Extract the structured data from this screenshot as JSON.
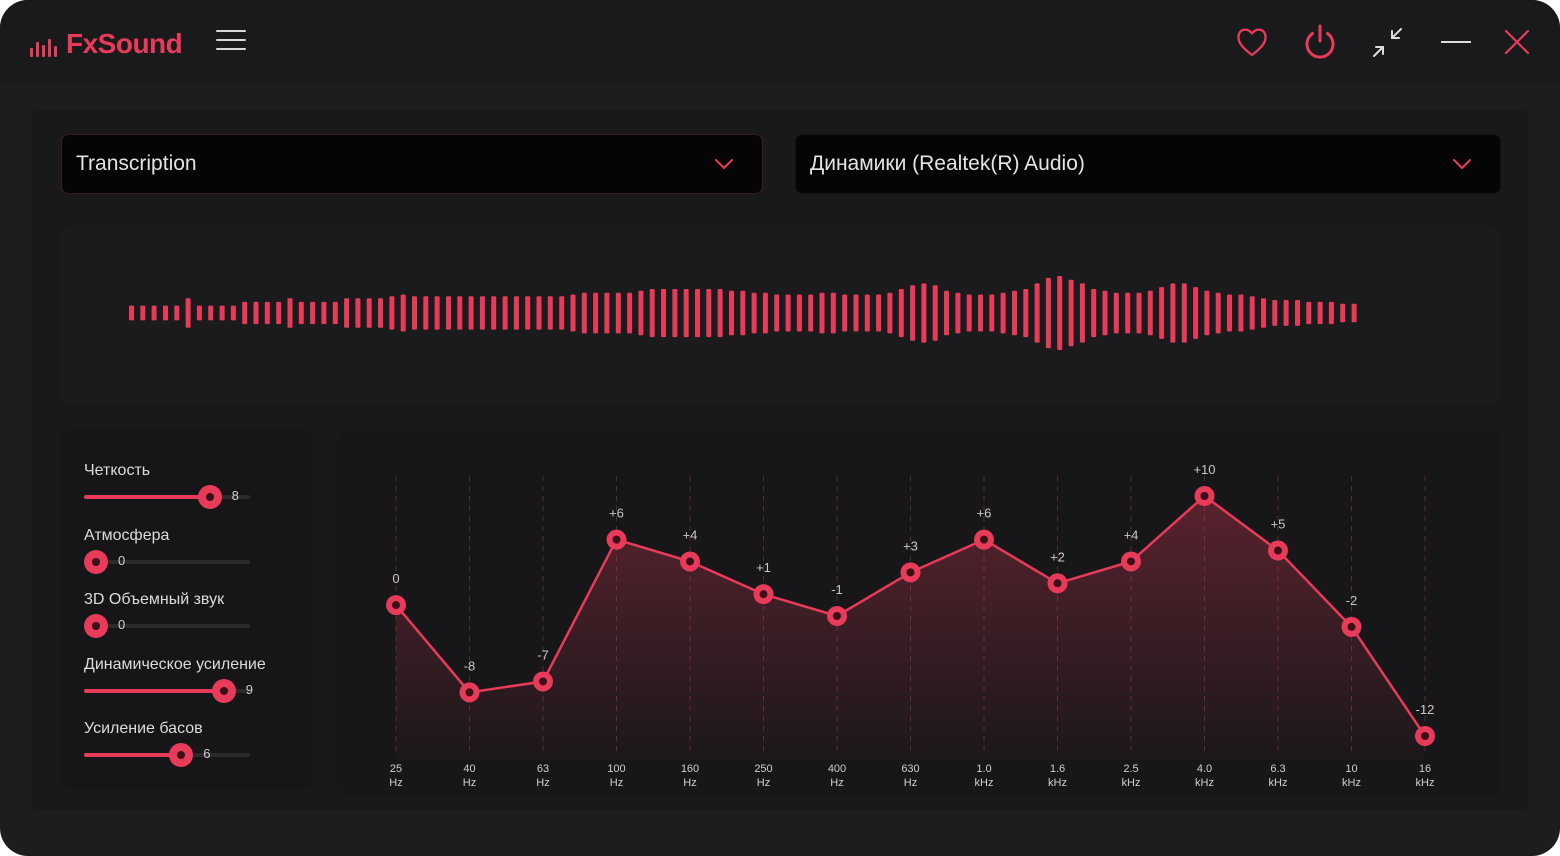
{
  "app": {
    "name": "FxSound"
  },
  "titlebar": {
    "menu_icon": "hamburger-menu-icon",
    "icons": [
      "heart-icon",
      "power-icon",
      "minimize-view-icon",
      "minimize-icon",
      "close-icon"
    ]
  },
  "preset": {
    "selected": "Transcription"
  },
  "output_device": {
    "selected": "Динамики (Realtek(R) Audio)"
  },
  "effects": [
    {
      "label": "Четкость",
      "value": "8",
      "level": 0.8
    },
    {
      "label": "Атмосфера",
      "value": "0",
      "level": 0.0
    },
    {
      "label": "3D Объемный звук",
      "value": "0",
      "level": 0.0
    },
    {
      "label": "Динамическое усиление",
      "value": "9",
      "level": 0.9
    },
    {
      "label": "Усиление басов",
      "value": "6",
      "level": 0.6
    }
  ],
  "equalizer": {
    "gain_range": [
      -12,
      10
    ],
    "bands": [
      {
        "freq": "25",
        "unit": "Hz",
        "gain": 0,
        "label": "0"
      },
      {
        "freq": "40",
        "unit": "Hz",
        "gain": -8,
        "label": "-8"
      },
      {
        "freq": "63",
        "unit": "Hz",
        "gain": -7,
        "label": "-7"
      },
      {
        "freq": "100",
        "unit": "Hz",
        "gain": 6,
        "label": "+6"
      },
      {
        "freq": "160",
        "unit": "Hz",
        "gain": 4,
        "label": "+4"
      },
      {
        "freq": "250",
        "unit": "Hz",
        "gain": 1,
        "label": "+1"
      },
      {
        "freq": "400",
        "unit": "Hz",
        "gain": -1,
        "label": "-1"
      },
      {
        "freq": "630",
        "unit": "Hz",
        "gain": 3,
        "label": "+3"
      },
      {
        "freq": "1.0",
        "unit": "kHz",
        "gain": 6,
        "label": "+6"
      },
      {
        "freq": "1.6",
        "unit": "kHz",
        "gain": 2,
        "label": "+2"
      },
      {
        "freq": "2.5",
        "unit": "kHz",
        "gain": 4,
        "label": "+4"
      },
      {
        "freq": "4.0",
        "unit": "kHz",
        "gain": 10,
        "label": "+10"
      },
      {
        "freq": "6.3",
        "unit": "kHz",
        "gain": 5,
        "label": "+5"
      },
      {
        "freq": "10",
        "unit": "kHz",
        "gain": -2,
        "label": "-2"
      },
      {
        "freq": "16",
        "unit": "kHz",
        "gain": -12,
        "label": "-12"
      }
    ]
  },
  "visualizer": {
    "levels": [
      0.2,
      0.2,
      0.2,
      0.2,
      0.2,
      0.4,
      0.2,
      0.2,
      0.2,
      0.2,
      0.3,
      0.3,
      0.3,
      0.3,
      0.4,
      0.3,
      0.3,
      0.3,
      0.3,
      0.4,
      0.4,
      0.4,
      0.4,
      0.45,
      0.5,
      0.45,
      0.45,
      0.45,
      0.45,
      0.45,
      0.45,
      0.45,
      0.45,
      0.45,
      0.45,
      0.45,
      0.45,
      0.45,
      0.45,
      0.5,
      0.55,
      0.55,
      0.55,
      0.55,
      0.55,
      0.6,
      0.65,
      0.65,
      0.65,
      0.65,
      0.65,
      0.65,
      0.65,
      0.6,
      0.6,
      0.55,
      0.55,
      0.5,
      0.5,
      0.5,
      0.5,
      0.55,
      0.55,
      0.5,
      0.5,
      0.5,
      0.5,
      0.55,
      0.65,
      0.75,
      0.8,
      0.75,
      0.6,
      0.55,
      0.5,
      0.5,
      0.5,
      0.55,
      0.6,
      0.65,
      0.8,
      0.95,
      1.0,
      0.9,
      0.8,
      0.65,
      0.6,
      0.55,
      0.55,
      0.55,
      0.6,
      0.7,
      0.8,
      0.8,
      0.7,
      0.6,
      0.55,
      0.5,
      0.5,
      0.45,
      0.4,
      0.35,
      0.35,
      0.35,
      0.3,
      0.3,
      0.3,
      0.25,
      0.25
    ],
    "color": "#e83a59"
  },
  "colors": {
    "accent": "#e83a59",
    "background": "#1d1d1f"
  }
}
